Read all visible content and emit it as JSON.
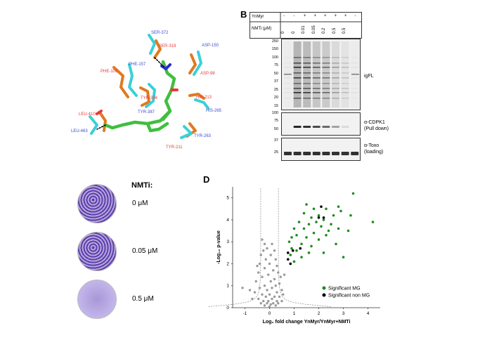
{
  "panels": {
    "b": "B",
    "d": "D"
  },
  "structure": {
    "residues_red": [
      "SER-319",
      "ASP-98",
      "PHE-105",
      "TYR-334",
      "HIS-213",
      "LEU-410",
      "TYR-211"
    ],
    "residues_blue": [
      "SER-372",
      "ASP-150",
      "PHE-157",
      "TYR-387",
      "HIS-265",
      "LEU-463",
      "TYR-263"
    ],
    "colors": {
      "orange": "#e07a1f",
      "cyan": "#3ad0d8",
      "green": "#3fbf3f",
      "red": "#e83a3a",
      "blue": "#3b4bd6"
    }
  },
  "blot": {
    "row1_label": "YnMyr",
    "row1_values": [
      "-",
      "-",
      "+",
      "+",
      "+",
      "+",
      "+",
      "-"
    ],
    "row2_label": "NMTi (μM)",
    "row2_values": [
      "0",
      "0",
      "0.01",
      "0.05",
      "0.2",
      "0.5",
      "0.5",
      ""
    ],
    "gel1_mw": [
      "250",
      "150",
      "100",
      "75",
      "50",
      "37",
      "25",
      "20",
      "15"
    ],
    "gel2_mw": [
      "100",
      "75",
      "50"
    ],
    "gel3_mw": [
      "37",
      "25"
    ],
    "gel1_label": "igFL",
    "gel2_label_1": "α-CDPK1",
    "gel2_label_2": "(Pull down)",
    "gel3_label_1": "α-Toxo",
    "gel3_label_2": "(loading)"
  },
  "plaque": {
    "title": "NMTi:",
    "concentrations": [
      "0 μM",
      "0.05 μM",
      "0.5 μM"
    ],
    "fill_levels": [
      1.0,
      0.85,
      0.35
    ]
  },
  "chart_data": {
    "type": "scatter",
    "xlabel": "Log₂ fold change YnMyr/YnMyr+NMTi",
    "ylabel": "-Log₁₀ p-value",
    "xlim": [
      -1.5,
      4.5
    ],
    "ylim": [
      0,
      5.5
    ],
    "xticks": [
      "-1",
      "0",
      "1",
      "2",
      "3",
      "4"
    ],
    "yticks": [
      "0",
      "1",
      "2",
      "3",
      "4",
      "5"
    ],
    "legend_placement": "bottom-right",
    "series": [
      {
        "name": "Significant MG",
        "color": "#1e8c1e",
        "points": [
          [
            3.4,
            5.2
          ],
          [
            1.5,
            4.7
          ],
          [
            2.8,
            4.6
          ],
          [
            1.8,
            4.5
          ],
          [
            2.3,
            4.5
          ],
          [
            2.9,
            4.4
          ],
          [
            1.4,
            4.3
          ],
          [
            2.0,
            4.2
          ],
          [
            2.6,
            4.2
          ],
          [
            3.3,
            4.2
          ],
          [
            1.7,
            4.1
          ],
          [
            2.2,
            4.0
          ],
          [
            1.2,
            3.9
          ],
          [
            1.9,
            3.9
          ],
          [
            2.5,
            3.8
          ],
          [
            4.2,
            3.9
          ],
          [
            1.6,
            3.8
          ],
          [
            2.1,
            3.7
          ],
          [
            1.0,
            3.6
          ],
          [
            1.4,
            3.6
          ],
          [
            2.8,
            3.6
          ],
          [
            3.2,
            3.5
          ],
          [
            1.1,
            3.3
          ],
          [
            1.8,
            3.4
          ],
          [
            2.3,
            3.3
          ],
          [
            0.9,
            3.2
          ],
          [
            1.5,
            3.2
          ],
          [
            2.0,
            3.1
          ],
          [
            0.8,
            3.0
          ],
          [
            1.3,
            2.9
          ],
          [
            1.7,
            2.8
          ],
          [
            2.7,
            2.9
          ],
          [
            0.9,
            2.7
          ],
          [
            1.1,
            2.6
          ],
          [
            1.6,
            2.5
          ],
          [
            2.2,
            2.5
          ],
          [
            3.0,
            2.3
          ],
          [
            0.85,
            2.4
          ],
          [
            1.3,
            2.3
          ],
          [
            1.0,
            2.1
          ],
          [
            2.4,
            3.5
          ]
        ],
        "note": ""
      },
      {
        "name": "Significant non MG",
        "color": "#000000",
        "points": [
          [
            2.1,
            4.6
          ],
          [
            2.0,
            4.1
          ],
          [
            2.2,
            4.1
          ],
          [
            1.25,
            2.7
          ],
          [
            0.95,
            2.6
          ],
          [
            0.75,
            2.5
          ],
          [
            0.75,
            2.2
          ],
          [
            0.85,
            2.0
          ]
        ]
      }
    ],
    "nonsig": {
      "color": "#9a9a9a",
      "points": [
        [
          -0.3,
          3.1
        ],
        [
          -0.2,
          2.9
        ],
        [
          0.1,
          2.9
        ],
        [
          -0.25,
          2.6
        ],
        [
          0.2,
          2.6
        ],
        [
          -0.35,
          2.4
        ],
        [
          0.05,
          2.4
        ],
        [
          -0.15,
          2.2
        ],
        [
          0.25,
          2.2
        ],
        [
          -0.4,
          2.0
        ],
        [
          0.0,
          2.0
        ],
        [
          0.3,
          1.9
        ],
        [
          -0.2,
          1.8
        ],
        [
          0.15,
          1.7
        ],
        [
          -0.45,
          1.6
        ],
        [
          0.35,
          1.6
        ],
        [
          -0.05,
          1.5
        ],
        [
          0.45,
          1.4
        ],
        [
          -0.3,
          1.4
        ],
        [
          0.2,
          1.3
        ],
        [
          -0.55,
          1.2
        ],
        [
          0.05,
          1.2
        ],
        [
          0.4,
          1.1
        ],
        [
          -0.2,
          1.0
        ],
        [
          0.25,
          1.0
        ],
        [
          -0.4,
          0.9
        ],
        [
          0.1,
          0.9
        ],
        [
          0.5,
          0.8
        ],
        [
          -0.1,
          0.8
        ],
        [
          -0.6,
          0.7
        ],
        [
          0.3,
          0.7
        ],
        [
          0.0,
          0.6
        ],
        [
          -0.3,
          0.6
        ],
        [
          0.2,
          0.5
        ],
        [
          -0.15,
          0.5
        ],
        [
          0.4,
          0.5
        ],
        [
          -0.45,
          0.4
        ],
        [
          0.1,
          0.4
        ],
        [
          -0.05,
          0.3
        ],
        [
          0.3,
          0.3
        ],
        [
          -0.25,
          0.3
        ],
        [
          0.15,
          0.2
        ],
        [
          -0.1,
          0.2
        ],
        [
          0.05,
          0.15
        ],
        [
          -0.2,
          0.1
        ],
        [
          0.25,
          0.1
        ],
        [
          0.0,
          0.05
        ],
        [
          -0.35,
          0.2
        ],
        [
          0.35,
          0.2
        ],
        [
          -0.8,
          0.8
        ],
        [
          -1.1,
          0.9
        ],
        [
          0.55,
          0.6
        ],
        [
          -0.5,
          1.9
        ],
        [
          -0.1,
          2.7
        ],
        [
          0.6,
          1.5
        ],
        [
          -0.7,
          0.4
        ],
        [
          0.5,
          0.3
        ]
      ]
    },
    "threshold": {
      "color": "#888888",
      "style": "dashed"
    }
  }
}
